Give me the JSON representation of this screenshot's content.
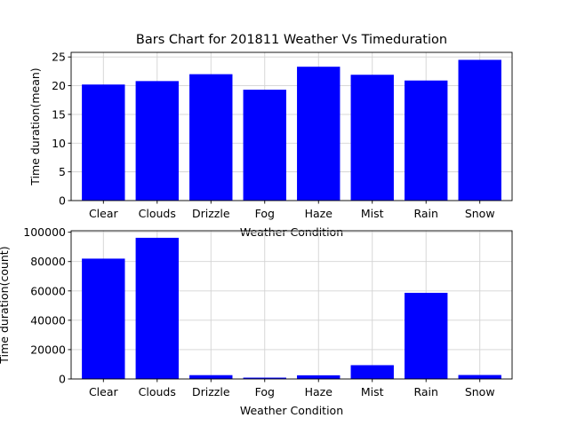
{
  "title": "Bars Chart for 201811 Weather Vs Timeduration",
  "bar_color": "#0000ff",
  "grid_color": "#d3d3d3",
  "chart_data": [
    {
      "type": "bar",
      "categories": [
        "Clear",
        "Clouds",
        "Drizzle",
        "Fog",
        "Haze",
        "Mist",
        "Rain",
        "Snow"
      ],
      "values": [
        20.2,
        20.8,
        22.0,
        19.3,
        23.3,
        21.9,
        20.9,
        24.5
      ],
      "xlabel": "Weather Condition",
      "ylabel": "Time duration(mean)",
      "ylim": [
        0,
        25.8
      ],
      "yticks": [
        0,
        5,
        10,
        15,
        20,
        25
      ],
      "grid": true
    },
    {
      "type": "bar",
      "categories": [
        "Clear",
        "Clouds",
        "Drizzle",
        "Fog",
        "Haze",
        "Mist",
        "Rain",
        "Snow"
      ],
      "values": [
        82000,
        96200,
        2600,
        900,
        2500,
        9400,
        58700,
        2700
      ],
      "xlabel": "Weather Condition",
      "ylabel": "Time duration(count)",
      "ylim": [
        0,
        101000
      ],
      "yticks": [
        0,
        20000,
        40000,
        60000,
        80000,
        100000
      ],
      "grid": true
    }
  ]
}
